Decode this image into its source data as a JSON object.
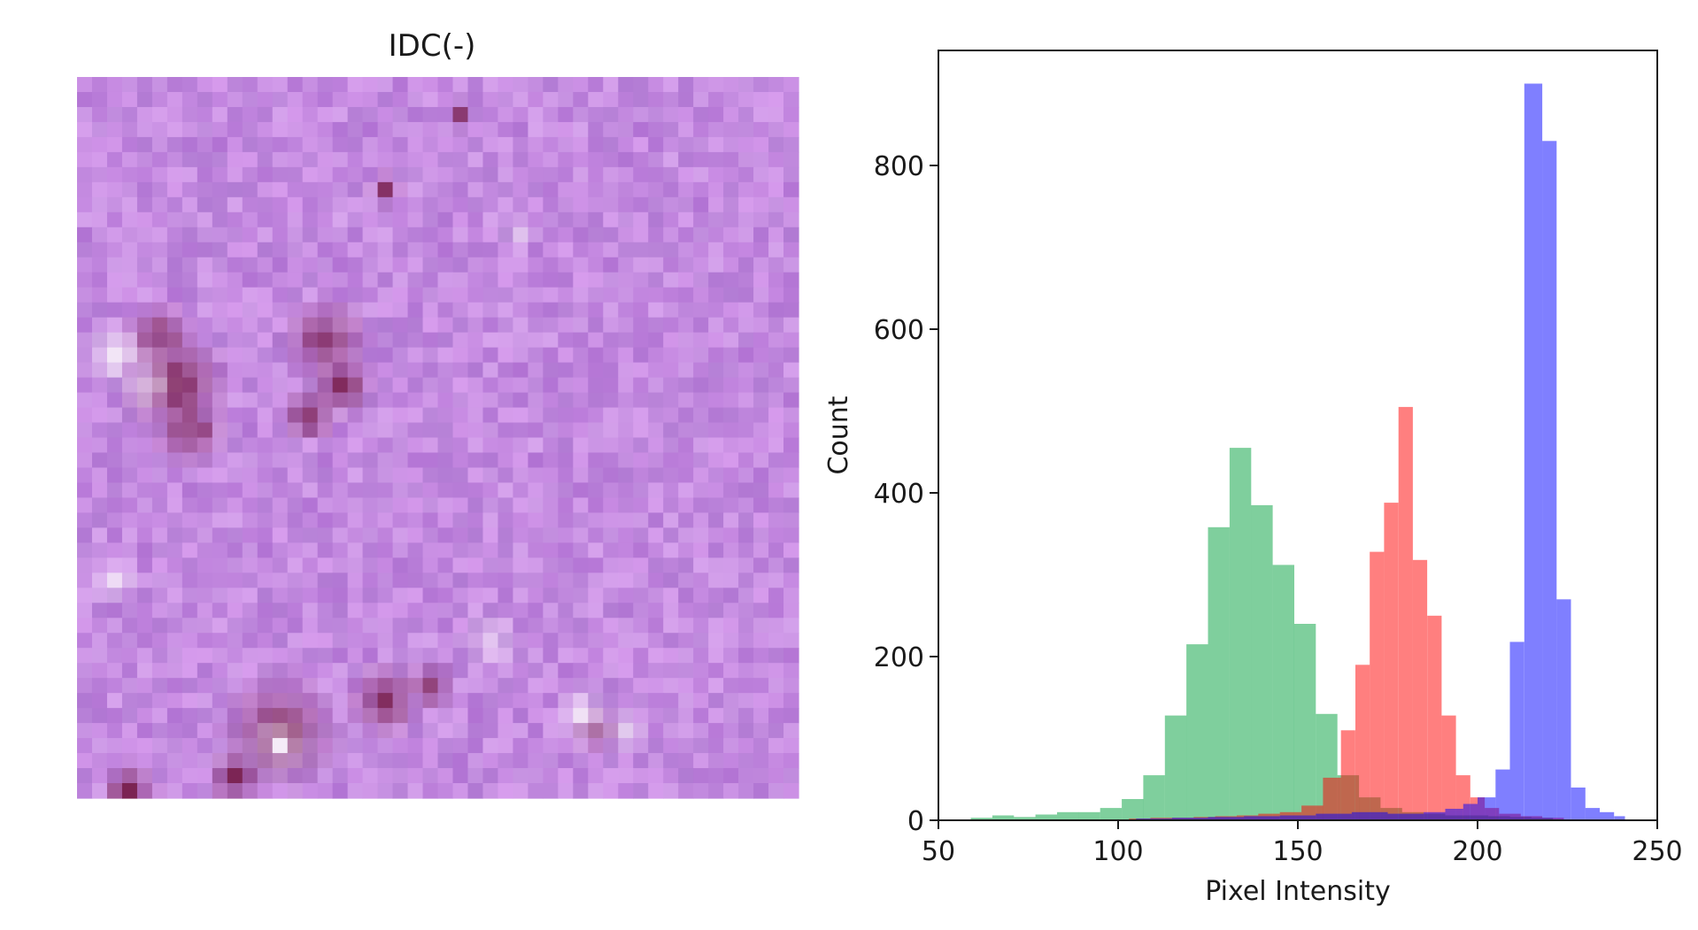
{
  "figure": {
    "image_panel": {
      "title": "IDC(-)",
      "description": "pixelated H&E-stained tissue patch, mostly lavender/purple with a few darker nuclei clusters"
    }
  },
  "colors": {
    "red": "#ff0000",
    "green": "#00a03c",
    "blue": "#0000ff",
    "overlap_red_green": "#7a6a00",
    "overlap_green_blue": "#1f4c66",
    "overlap_red_blue": "#8a1a8a",
    "tissue_base": "#c48be0",
    "axis": "#1a1a1a"
  },
  "chart_data": {
    "type": "bar",
    "subtype": "overlaid histograms (alpha 0.5)",
    "title": "",
    "xlabel": "Pixel Intensity",
    "ylabel": "Count",
    "xlim": [
      50,
      250
    ],
    "ylim": [
      0,
      940
    ],
    "xticks": [
      50,
      100,
      150,
      200,
      250
    ],
    "yticks": [
      0,
      200,
      400,
      600,
      800
    ],
    "grid": false,
    "legend": "none",
    "series": [
      {
        "color": "green",
        "bins": [
          {
            "x0": 59,
            "x1": 65,
            "count": 3
          },
          {
            "x0": 65,
            "x1": 71,
            "count": 6
          },
          {
            "x0": 71,
            "x1": 77,
            "count": 4
          },
          {
            "x0": 77,
            "x1": 83,
            "count": 7
          },
          {
            "x0": 83,
            "x1": 89,
            "count": 10
          },
          {
            "x0": 89,
            "x1": 95,
            "count": 10
          },
          {
            "x0": 95,
            "x1": 101,
            "count": 15
          },
          {
            "x0": 101,
            "x1": 107,
            "count": 26
          },
          {
            "x0": 107,
            "x1": 113,
            "count": 55
          },
          {
            "x0": 113,
            "x1": 119,
            "count": 128
          },
          {
            "x0": 119,
            "x1": 125,
            "count": 215
          },
          {
            "x0": 125,
            "x1": 131,
            "count": 358
          },
          {
            "x0": 131,
            "x1": 137,
            "count": 455
          },
          {
            "x0": 137,
            "x1": 143,
            "count": 385
          },
          {
            "x0": 143,
            "x1": 149,
            "count": 312
          },
          {
            "x0": 149,
            "x1": 155,
            "count": 240
          },
          {
            "x0": 155,
            "x1": 161,
            "count": 130
          },
          {
            "x0": 161,
            "x1": 167,
            "count": 55
          },
          {
            "x0": 167,
            "x1": 173,
            "count": 28
          },
          {
            "x0": 173,
            "x1": 179,
            "count": 15
          },
          {
            "x0": 179,
            "x1": 185,
            "count": 10
          },
          {
            "x0": 185,
            "x1": 191,
            "count": 8
          },
          {
            "x0": 191,
            "x1": 197,
            "count": 6
          },
          {
            "x0": 197,
            "x1": 203,
            "count": 6
          },
          {
            "x0": 203,
            "x1": 209,
            "count": 5
          },
          {
            "x0": 209,
            "x1": 215,
            "count": 4
          },
          {
            "x0": 215,
            "x1": 221,
            "count": 3
          }
        ]
      },
      {
        "color": "red",
        "bins": [
          {
            "x0": 103,
            "x1": 109,
            "count": 2
          },
          {
            "x0": 109,
            "x1": 115,
            "count": 3
          },
          {
            "x0": 115,
            "x1": 121,
            "count": 3
          },
          {
            "x0": 121,
            "x1": 127,
            "count": 4
          },
          {
            "x0": 127,
            "x1": 133,
            "count": 5
          },
          {
            "x0": 133,
            "x1": 139,
            "count": 6
          },
          {
            "x0": 139,
            "x1": 145,
            "count": 8
          },
          {
            "x0": 145,
            "x1": 151,
            "count": 10
          },
          {
            "x0": 151,
            "x1": 157,
            "count": 18
          },
          {
            "x0": 157,
            "x1": 162,
            "count": 52
          },
          {
            "x0": 162,
            "x1": 166,
            "count": 110
          },
          {
            "x0": 166,
            "x1": 170,
            "count": 190
          },
          {
            "x0": 170,
            "x1": 174,
            "count": 328
          },
          {
            "x0": 174,
            "x1": 178,
            "count": 388
          },
          {
            "x0": 178,
            "x1": 182,
            "count": 505
          },
          {
            "x0": 182,
            "x1": 186,
            "count": 318
          },
          {
            "x0": 186,
            "x1": 190,
            "count": 250
          },
          {
            "x0": 190,
            "x1": 194,
            "count": 128
          },
          {
            "x0": 194,
            "x1": 198,
            "count": 55
          },
          {
            "x0": 198,
            "x1": 202,
            "count": 28
          },
          {
            "x0": 202,
            "x1": 206,
            "count": 15
          },
          {
            "x0": 206,
            "x1": 212,
            "count": 8
          },
          {
            "x0": 212,
            "x1": 218,
            "count": 5
          },
          {
            "x0": 218,
            "x1": 224,
            "count": 3
          }
        ]
      },
      {
        "color": "blue",
        "bins": [
          {
            "x0": 105,
            "x1": 115,
            "count": 2
          },
          {
            "x0": 115,
            "x1": 125,
            "count": 3
          },
          {
            "x0": 125,
            "x1": 135,
            "count": 4
          },
          {
            "x0": 135,
            "x1": 145,
            "count": 5
          },
          {
            "x0": 145,
            "x1": 155,
            "count": 6
          },
          {
            "x0": 155,
            "x1": 165,
            "count": 8
          },
          {
            "x0": 165,
            "x1": 175,
            "count": 10
          },
          {
            "x0": 175,
            "x1": 185,
            "count": 8
          },
          {
            "x0": 185,
            "x1": 191,
            "count": 10
          },
          {
            "x0": 191,
            "x1": 196,
            "count": 14
          },
          {
            "x0": 196,
            "x1": 200,
            "count": 20
          },
          {
            "x0": 200,
            "x1": 205,
            "count": 28
          },
          {
            "x0": 205,
            "x1": 209,
            "count": 62
          },
          {
            "x0": 209,
            "x1": 213,
            "count": 218
          },
          {
            "x0": 213,
            "x1": 218,
            "count": 900
          },
          {
            "x0": 218,
            "x1": 222,
            "count": 830
          },
          {
            "x0": 222,
            "x1": 226,
            "count": 270
          },
          {
            "x0": 226,
            "x1": 230,
            "count": 40
          },
          {
            "x0": 230,
            "x1": 234,
            "count": 15
          },
          {
            "x0": 234,
            "x1": 238,
            "count": 10
          },
          {
            "x0": 238,
            "x1": 241,
            "count": 5
          }
        ]
      }
    ]
  }
}
